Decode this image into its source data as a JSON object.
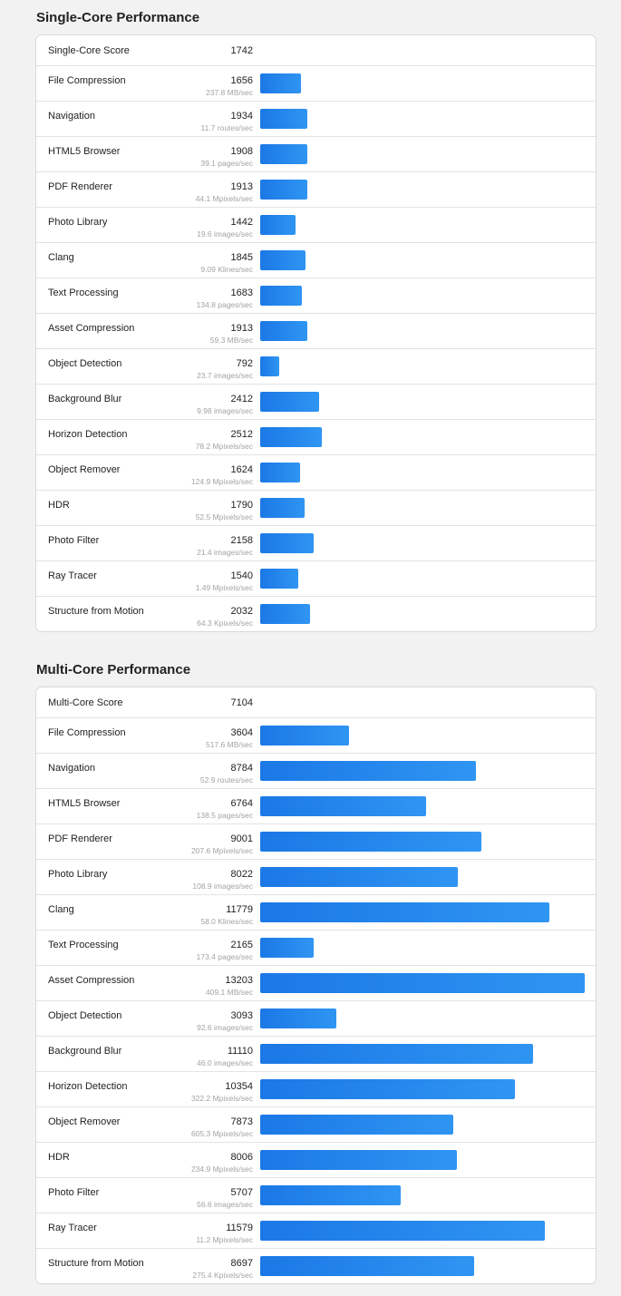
{
  "single": {
    "title": "Single-Core Performance",
    "score_label": "Single-Core Score",
    "score_value": "1742",
    "max": 13203,
    "tests": [
      {
        "name": "File Compression",
        "score": 1656,
        "sub": "237.8 MB/sec"
      },
      {
        "name": "Navigation",
        "score": 1934,
        "sub": "11.7 routes/sec"
      },
      {
        "name": "HTML5 Browser",
        "score": 1908,
        "sub": "39.1 pages/sec"
      },
      {
        "name": "PDF Renderer",
        "score": 1913,
        "sub": "44.1 Mpixels/sec"
      },
      {
        "name": "Photo Library",
        "score": 1442,
        "sub": "19.6 images/sec"
      },
      {
        "name": "Clang",
        "score": 1845,
        "sub": "9.09 Klines/sec"
      },
      {
        "name": "Text Processing",
        "score": 1683,
        "sub": "134.8 pages/sec"
      },
      {
        "name": "Asset Compression",
        "score": 1913,
        "sub": "59.3 MB/sec"
      },
      {
        "name": "Object Detection",
        "score": 792,
        "sub": "23.7 images/sec"
      },
      {
        "name": "Background Blur",
        "score": 2412,
        "sub": "9.98 images/sec"
      },
      {
        "name": "Horizon Detection",
        "score": 2512,
        "sub": "78.2 Mpixels/sec"
      },
      {
        "name": "Object Remover",
        "score": 1624,
        "sub": "124.9 Mpixels/sec"
      },
      {
        "name": "HDR",
        "score": 1790,
        "sub": "52.5 Mpixels/sec"
      },
      {
        "name": "Photo Filter",
        "score": 2158,
        "sub": "21.4 images/sec"
      },
      {
        "name": "Ray Tracer",
        "score": 1540,
        "sub": "1.49 Mpixels/sec"
      },
      {
        "name": "Structure from Motion",
        "score": 2032,
        "sub": "64.3 Kpixels/sec"
      }
    ]
  },
  "multi": {
    "title": "Multi-Core Performance",
    "score_label": "Multi-Core Score",
    "score_value": "7104",
    "max": 13203,
    "tests": [
      {
        "name": "File Compression",
        "score": 3604,
        "sub": "517.6 MB/sec"
      },
      {
        "name": "Navigation",
        "score": 8784,
        "sub": "52.9 routes/sec"
      },
      {
        "name": "HTML5 Browser",
        "score": 6764,
        "sub": "138.5 pages/sec"
      },
      {
        "name": "PDF Renderer",
        "score": 9001,
        "sub": "207.6 Mpixels/sec"
      },
      {
        "name": "Photo Library",
        "score": 8022,
        "sub": "108.9 images/sec"
      },
      {
        "name": "Clang",
        "score": 11779,
        "sub": "58.0 Klines/sec"
      },
      {
        "name": "Text Processing",
        "score": 2165,
        "sub": "173.4 pages/sec"
      },
      {
        "name": "Asset Compression",
        "score": 13203,
        "sub": "409.1 MB/sec"
      },
      {
        "name": "Object Detection",
        "score": 3093,
        "sub": "92.6 images/sec"
      },
      {
        "name": "Background Blur",
        "score": 11110,
        "sub": "46.0 images/sec"
      },
      {
        "name": "Horizon Detection",
        "score": 10354,
        "sub": "322.2 Mpixels/sec"
      },
      {
        "name": "Object Remover",
        "score": 7873,
        "sub": "605.3 Mpixels/sec"
      },
      {
        "name": "HDR",
        "score": 8006,
        "sub": "234.9 Mpixels/sec"
      },
      {
        "name": "Photo Filter",
        "score": 5707,
        "sub": "56.6 images/sec"
      },
      {
        "name": "Ray Tracer",
        "score": 11579,
        "sub": "11.2 Mpixels/sec"
      },
      {
        "name": "Structure from Motion",
        "score": 8697,
        "sub": "275.4 Kpixels/sec"
      }
    ]
  }
}
